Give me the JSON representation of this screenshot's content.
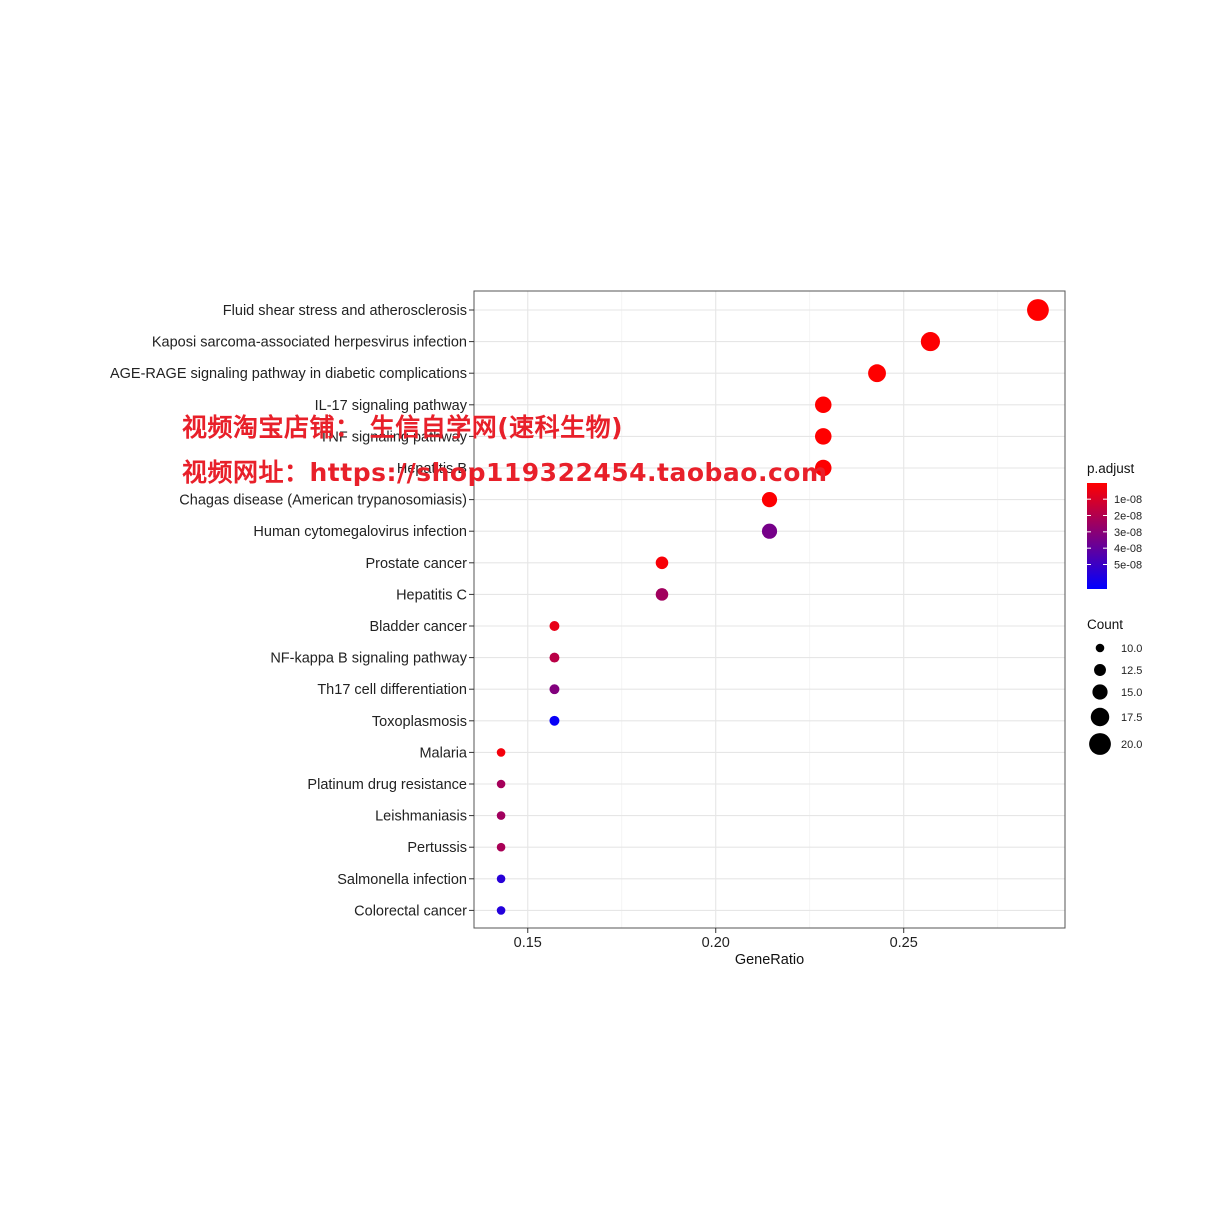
{
  "chart_data": {
    "type": "scatter",
    "xlabel": "GeneRatio",
    "x_ticks": [
      0.15,
      0.2,
      0.25
    ],
    "x_tick_labels": [
      "0.15",
      "0.20",
      "0.25"
    ],
    "xlim": [
      0.1357,
      0.2929
    ],
    "grid": true,
    "categories": [
      "Fluid shear stress and atherosclerosis",
      "Kaposi sarcoma-associated herpesvirus infection",
      "AGE-RAGE signaling pathway in diabetic complications",
      "IL-17 signaling pathway",
      "TNF signaling pathway",
      "Hepatitis B",
      "Chagas disease (American trypanosomiasis)",
      "Human cytomegalovirus infection",
      "Prostate cancer",
      "Hepatitis C",
      "Bladder cancer",
      "NF-kappa B signaling pathway",
      "Th17 cell differentiation",
      "Toxoplasmosis",
      "Malaria",
      "Platinum drug resistance",
      "Leishmaniasis",
      "Pertussis",
      "Salmonella infection",
      "Colorectal cancer"
    ],
    "gene_ratio": [
      0.2857,
      0.2571,
      0.2429,
      0.2286,
      0.2286,
      0.2286,
      0.2143,
      0.2143,
      0.1857,
      0.1857,
      0.1571,
      0.1571,
      0.1571,
      0.1571,
      0.1429,
      0.1429,
      0.1429,
      0.1429,
      0.1429,
      0.1429
    ],
    "count": [
      20,
      18,
      17,
      16,
      16,
      16,
      15,
      15,
      13,
      13,
      11,
      11,
      11,
      11,
      10,
      10,
      10,
      10,
      10,
      10
    ],
    "p_adjust": [
      2e-10,
      5e-10,
      1e-10,
      1e-10,
      1e-10,
      3e-10,
      6e-10,
      3.5e-08,
      2e-09,
      2.4e-08,
      6e-09,
      1.8e-08,
      3.2e-08,
      6.3e-08,
      3e-09,
      2.3e-08,
      2.4e-08,
      2.2e-08,
      5.5e-08,
      5.6e-08
    ],
    "legend_color": {
      "title": "p.adjust",
      "placement": "right",
      "tick_values": [
        1e-08,
        2e-08,
        3e-08,
        4e-08,
        5e-08
      ],
      "tick_labels": [
        "1e-08",
        "2e-08",
        "3e-08",
        "4e-08",
        "5e-08"
      ],
      "range": [
        1e-10,
        6.5e-08
      ],
      "color_low": "#ff0000",
      "color_high": "#0000ff"
    },
    "legend_size": {
      "title": "Count",
      "placement": "right",
      "values": [
        10,
        12.5,
        15,
        17.5,
        20
      ],
      "labels": [
        "10.0",
        "12.5",
        "15.0",
        "17.5",
        "20.0"
      ]
    }
  },
  "watermark": {
    "line1": "视频淘宝店铺：  生信自学网(速科生物)",
    "line2": "视频网址：https://shop119322454.taobao.com"
  }
}
